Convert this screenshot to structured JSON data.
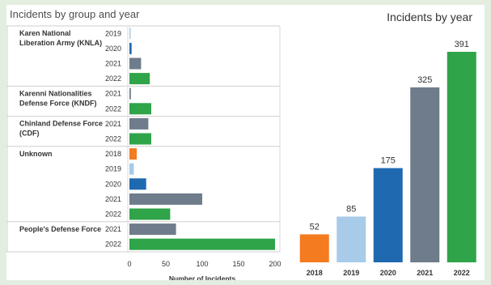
{
  "chart_data": [
    {
      "type": "bar",
      "orientation": "horizontal",
      "title": "Incidents by group and year",
      "xlabel": "Number of Incidents",
      "xlim": [
        0,
        200
      ],
      "xticks": [
        0,
        50,
        100,
        150,
        200
      ],
      "grid": false,
      "groups": [
        {
          "name": "Karen National Liberation Army (KNLA)",
          "name_lines": [
            "Karen National",
            "Liberation Army (KNLA)"
          ],
          "rows": [
            {
              "year": "2019",
              "value": 1
            },
            {
              "year": "2020",
              "value": 3
            },
            {
              "year": "2021",
              "value": 16
            },
            {
              "year": "2022",
              "value": 28
            }
          ]
        },
        {
          "name": "Karenni Nationalities Defense Force (KNDF)",
          "name_lines": [
            "Karenni Nationalities",
            "Defense Force (KNDF)"
          ],
          "rows": [
            {
              "year": "2021",
              "value": 2
            },
            {
              "year": "2022",
              "value": 30
            }
          ]
        },
        {
          "name": "Chinland Defense Force (CDF)",
          "name_lines": [
            "Chinland Defense Force",
            "(CDF)"
          ],
          "rows": [
            {
              "year": "2021",
              "value": 26
            },
            {
              "year": "2022",
              "value": 30
            }
          ]
        },
        {
          "name": "Unknown",
          "name_lines": [
            "Unknown"
          ],
          "rows": [
            {
              "year": "2018",
              "value": 10
            },
            {
              "year": "2019",
              "value": 6
            },
            {
              "year": "2020",
              "value": 23
            },
            {
              "year": "2021",
              "value": 100
            },
            {
              "year": "2022",
              "value": 56
            }
          ]
        },
        {
          "name": "People's Defense Force",
          "name_lines": [
            "People's Defense Force"
          ],
          "rows": [
            {
              "year": "2021",
              "value": 64
            },
            {
              "year": "2022",
              "value": 200
            }
          ]
        }
      ]
    },
    {
      "type": "bar",
      "title": "Incidents by year",
      "categories": [
        "2018",
        "2019",
        "2020",
        "2021",
        "2022"
      ],
      "values": [
        52,
        85,
        175,
        325,
        391
      ],
      "ylim": [
        0,
        391
      ],
      "grid": false
    }
  ],
  "year_colors": {
    "2018": "#f47b20",
    "2019": "#a7cbe8",
    "2020": "#1f69b1",
    "2021": "#6e7c8c",
    "2022": "#2fa449"
  }
}
